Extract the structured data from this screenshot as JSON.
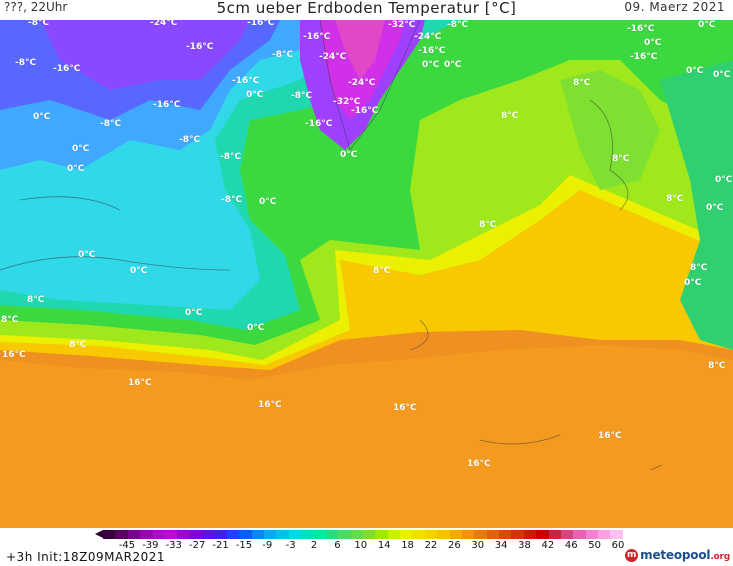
{
  "header": {
    "left": "???, 22Uhr",
    "title": "5cm ueber Erdboden Temperatur [°C]",
    "date": "09. Maerz 2021"
  },
  "legend": {
    "ticks": [
      "-45",
      "-39",
      "-33",
      "-27",
      "-21",
      "-15",
      "-9",
      "-3",
      "2",
      "6",
      "10",
      "14",
      "18",
      "22",
      "26",
      "30",
      "34",
      "38",
      "42",
      "46",
      "50",
      "60"
    ],
    "colors": [
      "#3a0040",
      "#5a0060",
      "#7a0090",
      "#9a00b8",
      "#b400d0",
      "#c000e0",
      "#a000d8",
      "#8000e0",
      "#6010e8",
      "#4020e8",
      "#2040ff",
      "#0060ff",
      "#0088ff",
      "#00aaff",
      "#00c0f0",
      "#00d8e8",
      "#00e0c0",
      "#00e8a0",
      "#20e080",
      "#40e060",
      "#60e040",
      "#80e020",
      "#a0e800",
      "#c8f000",
      "#e8f000",
      "#f0e000",
      "#f8d000",
      "#f8c000",
      "#f8a800",
      "#f89000",
      "#f07800",
      "#e86000",
      "#e04800",
      "#d83000",
      "#d01800",
      "#c80000",
      "#d02040",
      "#e04080",
      "#f060b0",
      "#f880d0",
      "#ffa0e0",
      "#ffc0f0"
    ]
  },
  "labels": [
    "-8°C",
    "-24°C",
    "-16°C",
    "-32°C",
    "-8°C",
    "-16°C",
    "0°C",
    "-8°C",
    "-16°C",
    "-16°C",
    "-24°C",
    "-16°C",
    "0°C",
    "-16°C",
    "0°C",
    "0°C",
    "-16°C",
    "0°C",
    "-8°C",
    "-24°C",
    "-24°C",
    "-16°C",
    "-16°C",
    "-8°C",
    "-32°C",
    "0°C",
    "8°C",
    "0°C",
    "0°C",
    "-8°C",
    "-16°C",
    "8°C",
    "-16°C",
    "-8°C",
    "0°C",
    "-8°C",
    "0°C",
    "8°C",
    "0°C",
    "-8°C",
    "0°C",
    "0°C",
    "8°C",
    "0°C",
    "0°C",
    "0°C",
    "8°C",
    "8°C",
    "8°C",
    "0°C",
    "0°C",
    "8°C",
    "0°C",
    "16°C",
    "8°C",
    "8°C",
    "16°C",
    "16°C",
    "16°C",
    "8°C",
    "16°C",
    "16°C"
  ],
  "footer": {
    "init": "+3h Init:18Z09MAR2021",
    "logo_mark": "m",
    "logo_name": "meteopool",
    "logo_tld": ".org"
  }
}
